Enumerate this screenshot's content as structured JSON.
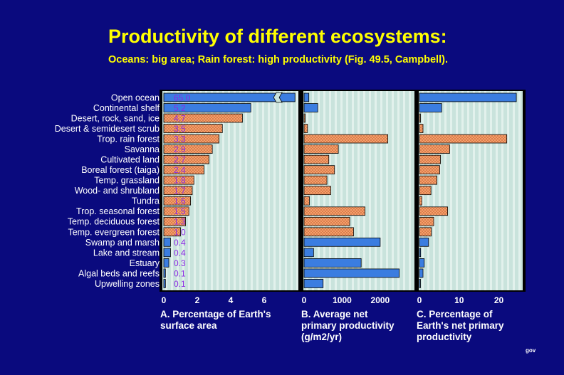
{
  "title": "Productivity of different ecosystems:",
  "subtitle": "Oceans: big area; Rain forest: high productivity (Fig. 49.5, Campbell).",
  "credit": "gov",
  "colors": {
    "background": "#0a0a7e",
    "title": "#ffff00",
    "panel_bg": "#c9e3dc",
    "panel_stripe": "#e2f1ec",
    "aquatic_bar": "#3b7de0",
    "terrestrial_bar": "#e8925a",
    "value_label": "#8a2be2"
  },
  "chart_data": {
    "type": "bar",
    "orientation": "horizontal",
    "categories": [
      "Open ocean",
      "Continental shelf",
      "Desert, rock, sand, ice",
      "Desert & semidesert scrub",
      "Trop. rain forest",
      "Savanna",
      "Cultivated land",
      "Boreal forest (taiga)",
      "Temp. grassland",
      "Wood- and shrubland",
      "Tundra",
      "Trop. seasonal forest",
      "Temp. deciduous forest",
      "Temp. evergreen forest",
      "Swamp and marsh",
      "Lake and stream",
      "Estuary",
      "Algal beds and reefs",
      "Upwelling zones"
    ],
    "category_type": [
      "aquatic",
      "aquatic",
      "terrestrial",
      "terrestrial",
      "terrestrial",
      "terrestrial",
      "terrestrial",
      "terrestrial",
      "terrestrial",
      "terrestrial",
      "terrestrial",
      "terrestrial",
      "terrestrial",
      "terrestrial",
      "aquatic",
      "aquatic",
      "aquatic",
      "aquatic",
      "aquatic"
    ],
    "panels": [
      {
        "id": "A",
        "caption_lines": [
          "A. Percentage of Earth's",
          "surface area"
        ],
        "xlim": [
          0,
          8
        ],
        "ticks": [
          "0",
          "2",
          "4",
          "6"
        ],
        "tick_values": [
          0,
          2,
          4,
          6
        ],
        "broken_axis_first_bar": true,
        "value_labels": [
          "65.0",
          "5.2",
          "4.7",
          "3.5",
          "3.3",
          "2.9",
          "2.7",
          "2.4",
          "1.8",
          "1.7",
          "1.6",
          "1.5",
          "1.3",
          "1.0",
          "0.4",
          "0.4",
          "0.3",
          "0.1",
          "0.1"
        ],
        "values": [
          65.0,
          5.2,
          4.7,
          3.5,
          3.3,
          2.9,
          2.7,
          2.4,
          1.8,
          1.7,
          1.6,
          1.5,
          1.3,
          1.0,
          0.4,
          0.4,
          0.3,
          0.1,
          0.1
        ]
      },
      {
        "id": "B",
        "caption_lines": [
          "B. Average net",
          "primary productivity",
          "(g/m2/yr)"
        ],
        "xlim": [
          0,
          2900
        ],
        "ticks": [
          "0",
          "1000",
          "2000"
        ],
        "tick_values": [
          0,
          1000,
          2000
        ],
        "values": [
          125,
          360,
          3,
          90,
          2200,
          900,
          650,
          800,
          600,
          700,
          140,
          1600,
          1200,
          1300,
          2000,
          250,
          1500,
          2500,
          500
        ]
      },
      {
        "id": "C",
        "caption_lines": [
          "C. Percentage of",
          "Earth's net primary",
          "productivity"
        ],
        "xlim": [
          0,
          26
        ],
        "ticks": [
          "0",
          "10",
          "20"
        ],
        "tick_values": [
          0,
          10,
          20
        ],
        "values": [
          24.4,
          5.6,
          0.04,
          0.9,
          22,
          7.6,
          5.3,
          5.1,
          4.4,
          2.9,
          0.6,
          7.1,
          3.6,
          3.0,
          2.3,
          0.3,
          1.2,
          0.9,
          0.1
        ]
      }
    ]
  }
}
